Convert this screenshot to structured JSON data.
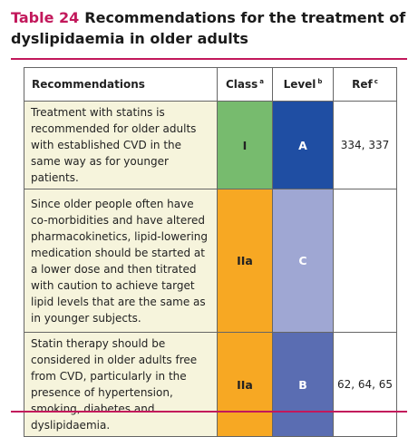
{
  "table_number": "Table 24",
  "title": "Recommendations for the treatment of dyslipidaemia in older adults",
  "headers": {
    "recommendations": "Recommendations",
    "class": "Class",
    "class_sup": "a",
    "level": "Level",
    "level_sup": "b",
    "ref": "Ref",
    "ref_sup": "c"
  },
  "rows": [
    {
      "text": "Treatment with statins is recommended for older adults with established CVD in the same way as for younger patients.",
      "class": "I",
      "level": "A",
      "ref": "334, 337",
      "class_color": "#77bb6e",
      "level_color": "#1f4ea3"
    },
    {
      "text": "Since older people often have co-morbidities and have altered pharmacokinetics, lipid-lowering medication should be started at a lower dose and then titrated with caution to achieve target lipid levels that are the same as in younger subjects.",
      "class": "IIa",
      "level": "C",
      "ref": "",
      "class_color": "#f7a823",
      "level_color": "#9fa7d3"
    },
    {
      "text": "Statin therapy should be considered in older adults free from CVD, particularly in the presence of hypertension, smoking, diabetes and dyslipidaemia.",
      "class": "IIa",
      "level": "B",
      "ref": "62, 64, 65",
      "class_color": "#f7a823",
      "level_color": "#5a6db2"
    }
  ]
}
